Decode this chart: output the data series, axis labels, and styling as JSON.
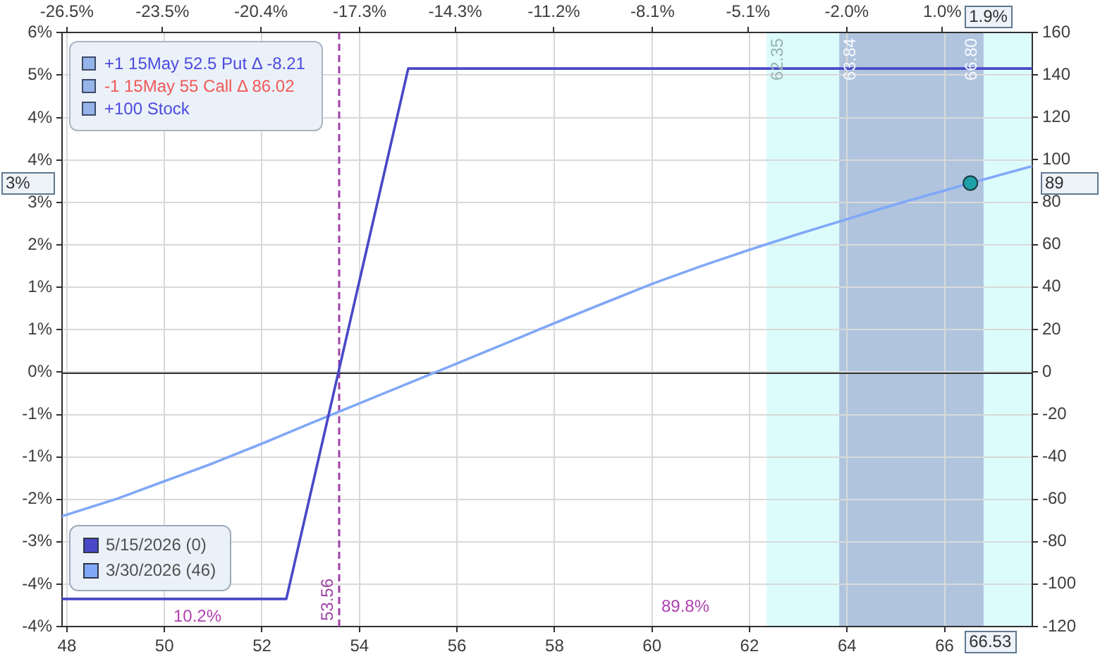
{
  "chart_data": {
    "type": "line",
    "annotations": [
      "+1 15May 52.5 Put Δ -8.21",
      "-1 15May 55 Call Δ 86.02",
      "+100 Stock",
      "10.2%",
      "89.8%",
      "3%",
      {
        "text": "62.35",
        "x": 62.35,
        "y": 5.46
      },
      {
        "text": "63.84",
        "x": 63.84,
        "y": 5.46
      },
      {
        "text": "66.80",
        "x": 66.8,
        "y": 5.46
      },
      {
        "text": "66.53",
        "x": 66.53,
        "y": -4.44
      },
      {
        "text": "1.9%",
        "x": 66.53,
        "y": 5.93
      },
      {
        "text": "89",
        "x": 67.8,
        "y": 3.3
      }
    ],
    "series": [
      {
        "name": "5/15/2026 (0)",
        "color": "#4848c8",
        "axis": "y2",
        "x": [
          47.9,
          52.5,
          55,
          67.8
        ],
        "values": [
          -107,
          -107,
          143,
          143
        ]
      },
      {
        "name": "3/30/2026 (46)",
        "color": "#80a8f8",
        "axis": "y2",
        "x": [
          47.9,
          49,
          50,
          51,
          52,
          53,
          54,
          55,
          56,
          57,
          58,
          59,
          60,
          61,
          62,
          63,
          64,
          65,
          66,
          66.53,
          67.8
        ],
        "values": [
          -68,
          -60,
          -51.5,
          -43,
          -33.8,
          -24.2,
          -14.8,
          -5.4,
          4,
          13.5,
          23,
          32.3,
          41.5,
          49.8,
          57.6,
          65,
          72,
          79,
          85.5,
          89,
          97
        ]
      },
      {
        "type": "scatter",
        "color": "#20a0a8",
        "axis": "y2",
        "marker": "circle",
        "x": [
          66.53
        ],
        "values": [
          89
        ]
      }
    ],
    "xlim": [
      47.9,
      67.8
    ],
    "xticks": [
      48,
      50,
      52,
      54,
      56,
      58,
      60,
      62,
      64,
      66
    ],
    "x2lim": [
      -26.65,
      3.83
    ],
    "x2ticks": [
      {
        "value": -26.5,
        "label": "-26.5%"
      },
      {
        "value": -23.5,
        "label": "-23.5%"
      },
      {
        "value": -20.4,
        "label": "-20.4%"
      },
      {
        "value": -17.3,
        "label": "-17.3%"
      },
      {
        "value": -14.3,
        "label": "-14.3%"
      },
      {
        "value": -11.2,
        "label": "-11.2%"
      },
      {
        "value": -8.1,
        "label": "-8.1%"
      },
      {
        "value": -5.1,
        "label": "-5.1%"
      },
      {
        "value": -2.0,
        "label": "-2.0%"
      },
      {
        "value": 1.0,
        "label": "1.0%"
      }
    ],
    "ylim": [
      -4.44,
      5.93
    ],
    "yticks": [
      {
        "value": -4.44,
        "label": "-4%"
      },
      {
        "value": -3.7,
        "label": "-4%"
      },
      {
        "value": -2.96,
        "label": "-3%"
      },
      {
        "value": -2.22,
        "label": "-2%"
      },
      {
        "value": -1.48,
        "label": "-1%"
      },
      {
        "value": -0.74,
        "label": "-1%"
      },
      {
        "value": 0,
        "label": "0%"
      },
      {
        "value": 0.74,
        "label": "1%"
      },
      {
        "value": 1.48,
        "label": "1%"
      },
      {
        "value": 2.22,
        "label": "2%"
      },
      {
        "value": 2.96,
        "label": "3%"
      },
      {
        "value": 3.7,
        "label": "4%"
      },
      {
        "value": 4.44,
        "label": "4%"
      },
      {
        "value": 5.19,
        "label": "5%"
      },
      {
        "value": 5.93,
        "label": "6%"
      }
    ],
    "y2lim": [
      -120,
      160
    ],
    "y2ticks": [
      -120,
      -100,
      -80,
      -60,
      -40,
      -20,
      0,
      20,
      40,
      60,
      80,
      100,
      120,
      140,
      160
    ],
    "ref_lines": [
      {
        "axis": "x",
        "value": 53.56,
        "label": "53.56",
        "color": "#a040a8",
        "line_style": "dashed"
      },
      {
        "axis": "y2",
        "value": 0,
        "color": "#303030"
      }
    ],
    "bands": [
      {
        "axis": "x",
        "from": 62.35,
        "to": 67.8,
        "color": "#dcfcfc"
      },
      {
        "axis": "x",
        "from": 63.84,
        "to": 66.8,
        "color": "#b0c4de"
      }
    ],
    "grid": true,
    "legend": "bottom left"
  }
}
